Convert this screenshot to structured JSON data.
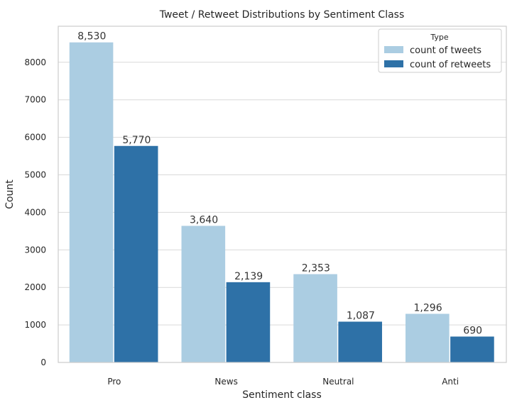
{
  "chart_data": {
    "type": "bar",
    "title": "Tweet / Retweet Distributions by Sentiment Class",
    "xlabel": "Sentiment class",
    "ylabel": "Count",
    "categories": [
      "Pro",
      "News",
      "Neutral",
      "Anti"
    ],
    "series": [
      {
        "name": "count of tweets",
        "values": [
          8530,
          3640,
          2353,
          1296
        ],
        "labels": [
          "8,530",
          "3,640",
          "2,353",
          "1,296"
        ],
        "color": "#abcde2"
      },
      {
        "name": "count of retweets",
        "values": [
          5770,
          2139,
          1087,
          690
        ],
        "labels": [
          "5,770",
          "2,139",
          "1,087",
          "690"
        ],
        "color": "#2e71a7"
      }
    ],
    "ylim": [
      0,
      8960
    ],
    "yticks": [
      0,
      1000,
      2000,
      3000,
      4000,
      5000,
      6000,
      7000,
      8000
    ],
    "ytick_labels": [
      "0",
      "1000",
      "2000",
      "3000",
      "4000",
      "5000",
      "6000",
      "7000",
      "8000"
    ],
    "grid": true,
    "legend": {
      "title": "Type",
      "placement": "top-right"
    }
  }
}
